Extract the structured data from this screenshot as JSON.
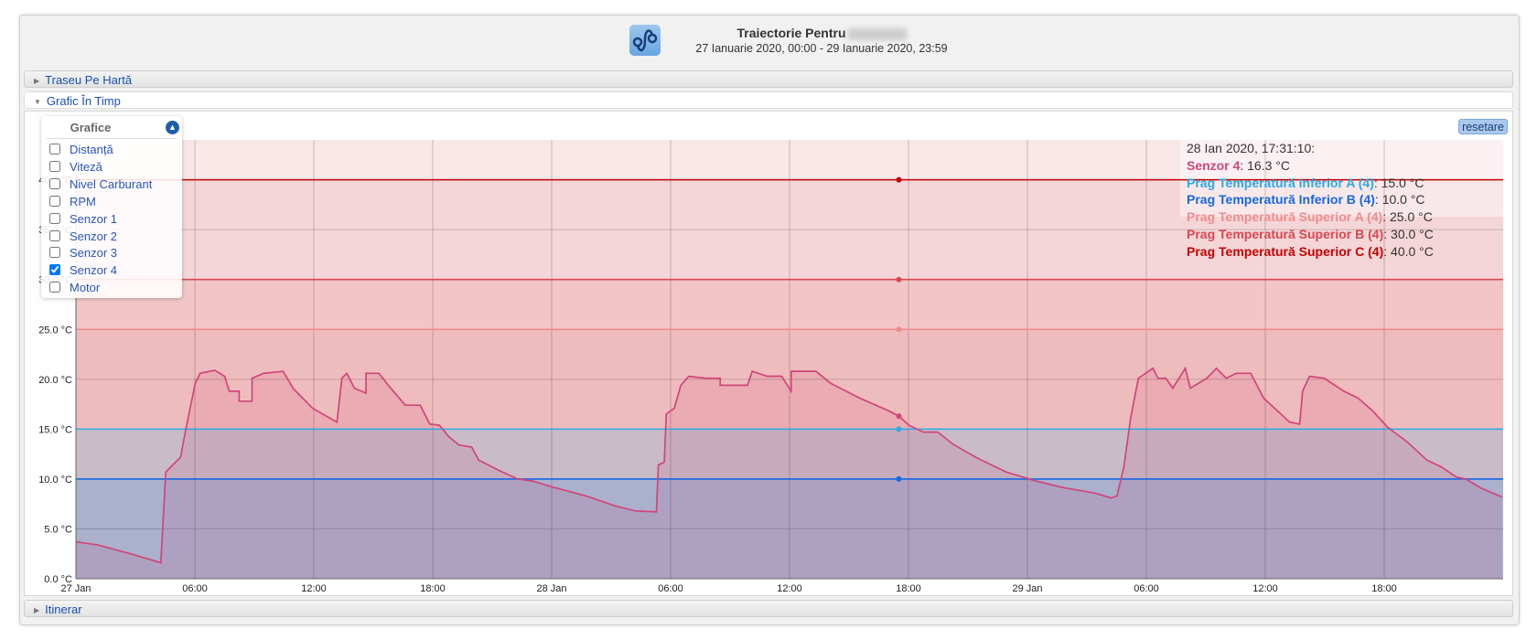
{
  "header": {
    "title": "Traiectorie Pentru",
    "subtitle": "27 Ianuarie 2020, 00:00 - 29 Ianuarie 2020, 23:59",
    "icon": "route-icon"
  },
  "sections": {
    "map": "Traseu Pe Hartă",
    "chart": "Grafic În Timp",
    "itinerary": "Itinerar"
  },
  "legend": {
    "title": "Grafice",
    "items": [
      {
        "label": "Distanță",
        "checked": false
      },
      {
        "label": "Viteză",
        "checked": false
      },
      {
        "label": "Nivel Carburant",
        "checked": false
      },
      {
        "label": "RPM",
        "checked": false
      },
      {
        "label": "Senzor 1",
        "checked": false
      },
      {
        "label": "Senzor 2",
        "checked": false
      },
      {
        "label": "Senzor 3",
        "checked": false
      },
      {
        "label": "Senzor 4",
        "checked": true
      },
      {
        "label": "Motor",
        "checked": false
      }
    ]
  },
  "reset_label": "resetare",
  "tooltip": {
    "time": "28 Ian 2020, 17:31:10:",
    "rows": [
      {
        "name": "Senzor 4",
        "value": "16.3 °C",
        "color": "#d0457a"
      },
      {
        "name": "Prag Temperatură Inferior A (4)",
        "value": "15.0 °C",
        "color": "#2aa9e8"
      },
      {
        "name": "Prag Temperatură Inferior B (4)",
        "value": "10.0 °C",
        "color": "#1668e6"
      },
      {
        "name": "Prag Temperatură Superior A (4)",
        "value": "25.0 °C",
        "color": "#ee8c8c"
      },
      {
        "name": "Prag Temperatură Superior B (4)",
        "value": "30.0 °C",
        "color": "#d9484f"
      },
      {
        "name": "Prag Temperatură Superior C (4)",
        "value": "40.0 °C",
        "color": "#c40000"
      }
    ]
  },
  "chart_data": {
    "type": "line",
    "xlim": [
      "2020-01-27T00:00",
      "2020-01-29T23:59"
    ],
    "ylim": [
      0,
      44
    ],
    "grid": true,
    "x_ticks": [
      "27 Jan",
      "06:00",
      "12:00",
      "18:00",
      "28 Jan",
      "06:00",
      "12:00",
      "18:00",
      "29 Jan",
      "06:00",
      "12:00",
      "18:00"
    ],
    "y_ticks": [
      "0.0 °C",
      "5.0 °C",
      "10.0 °C",
      "15.0 °C",
      "20.0 °C",
      "25.0 °C",
      "30.0 °C",
      "35.0 °C",
      "40.0 °C"
    ],
    "crosshair_time": "2020-01-28T17:31",
    "thresholds": [
      {
        "name": "Prag Temperatură Inferior A (4)",
        "value": 15,
        "color": "#2aa9e8"
      },
      {
        "name": "Prag Temperatură Inferior B (4)",
        "value": 10,
        "color": "#1668e6"
      },
      {
        "name": "Prag Temperatură Superior A (4)",
        "value": 25,
        "color": "#ee8c8c"
      },
      {
        "name": "Prag Temperatură Superior B (4)",
        "value": 30,
        "color": "#d9484f"
      },
      {
        "name": "Prag Temperatură Superior C (4)",
        "value": 40,
        "color": "#c40000"
      }
    ],
    "series": [
      {
        "name": "Senzor 4",
        "color": "#d0457a",
        "points": [
          [
            "2020-01-27T00:00",
            3.7
          ],
          [
            "2020-01-27T01:05",
            3.4
          ],
          [
            "2020-01-27T02:34",
            2.6
          ],
          [
            "2020-01-27T04:17",
            1.6
          ],
          [
            "2020-01-27T04:32",
            10.7
          ],
          [
            "2020-01-27T05:17",
            12.2
          ],
          [
            "2020-01-27T05:31",
            14.7
          ],
          [
            "2020-01-27T06:01",
            19.6
          ],
          [
            "2020-01-27T06:16",
            20.6
          ],
          [
            "2020-01-27T07:00",
            20.9
          ],
          [
            "2020-01-27T07:30",
            20.3
          ],
          [
            "2020-01-27T07:44",
            18.8
          ],
          [
            "2020-01-27T08:14",
            18.8
          ],
          [
            "2020-01-27T08:14",
            17.8
          ],
          [
            "2020-01-27T08:53",
            17.8
          ],
          [
            "2020-01-27T08:53",
            20.1
          ],
          [
            "2020-01-27T09:28",
            20.6
          ],
          [
            "2020-01-27T10:27",
            20.8
          ],
          [
            "2020-01-27T10:57",
            19.1
          ],
          [
            "2020-01-27T11:56",
            17.1
          ],
          [
            "2020-01-27T13:10",
            15.7
          ],
          [
            "2020-01-27T13:25",
            20.1
          ],
          [
            "2020-01-27T13:40",
            20.6
          ],
          [
            "2020-01-27T14:03",
            19.1
          ],
          [
            "2020-01-27T14:38",
            18.6
          ],
          [
            "2020-01-27T14:38",
            20.6
          ],
          [
            "2020-01-27T15:17",
            20.6
          ],
          [
            "2020-01-27T15:53",
            19.1
          ],
          [
            "2020-01-27T16:37",
            17.4
          ],
          [
            "2020-01-27T17:22",
            17.4
          ],
          [
            "2020-01-27T17:51",
            15.5
          ],
          [
            "2020-01-27T18:20",
            15.4
          ],
          [
            "2020-01-27T18:50",
            14.2
          ],
          [
            "2020-01-27T19:20",
            13.4
          ],
          [
            "2020-01-27T19:58",
            13.2
          ],
          [
            "2020-01-27T20:19",
            11.9
          ],
          [
            "2020-01-27T21:18",
            10.9
          ],
          [
            "2020-01-27T22:17",
            10.0
          ],
          [
            "2020-01-27T23:02",
            9.8
          ],
          [
            "2020-01-28T00:01",
            9.2
          ],
          [
            "2020-01-28T01:44",
            8.3
          ],
          [
            "2020-01-28T03:13",
            7.3
          ],
          [
            "2020-01-28T04:13",
            6.8
          ],
          [
            "2020-01-28T05:17",
            6.7
          ],
          [
            "2020-01-28T05:23",
            11.4
          ],
          [
            "2020-01-28T05:41",
            11.7
          ],
          [
            "2020-01-28T05:47",
            16.5
          ],
          [
            "2020-01-28T06:11",
            17.1
          ],
          [
            "2020-01-28T06:31",
            19.4
          ],
          [
            "2020-01-28T06:55",
            20.3
          ],
          [
            "2020-01-28T07:46",
            20.1
          ],
          [
            "2020-01-28T08:30",
            20.1
          ],
          [
            "2020-01-28T08:30",
            19.4
          ],
          [
            "2020-01-28T09:53",
            19.4
          ],
          [
            "2020-01-28T10:07",
            20.8
          ],
          [
            "2020-01-28T10:52",
            20.3
          ],
          [
            "2020-01-28T11:36",
            20.3
          ],
          [
            "2020-01-28T12:05",
            18.8
          ],
          [
            "2020-01-28T12:05",
            20.8
          ],
          [
            "2020-01-28T13:20",
            20.8
          ],
          [
            "2020-01-28T14:04",
            19.6
          ],
          [
            "2020-01-28T15:33",
            18.1
          ],
          [
            "2020-01-28T17:02",
            16.8
          ],
          [
            "2020-01-28T17:31",
            16.3
          ],
          [
            "2020-01-28T18:01",
            15.4
          ],
          [
            "2020-01-28T18:45",
            14.7
          ],
          [
            "2020-01-28T19:29",
            14.7
          ],
          [
            "2020-01-28T20:14",
            13.5
          ],
          [
            "2020-01-28T21:28",
            12.1
          ],
          [
            "2020-01-28T22:56",
            10.7
          ],
          [
            "2020-01-29T00:25",
            9.8
          ],
          [
            "2020-01-29T01:54",
            9.1
          ],
          [
            "2020-01-29T03:23",
            8.6
          ],
          [
            "2020-01-29T04:13",
            8.1
          ],
          [
            "2020-01-29T04:31",
            8.3
          ],
          [
            "2020-01-29T04:52",
            11.2
          ],
          [
            "2020-01-29T05:13",
            16.2
          ],
          [
            "2020-01-29T05:36",
            20.1
          ],
          [
            "2020-01-29T06:20",
            21.1
          ],
          [
            "2020-01-29T06:35",
            20.1
          ],
          [
            "2020-01-29T06:59",
            20.1
          ],
          [
            "2020-01-29T07:20",
            19.1
          ],
          [
            "2020-01-29T07:58",
            21.1
          ],
          [
            "2020-01-29T08:13",
            19.1
          ],
          [
            "2020-01-29T09:03",
            20.1
          ],
          [
            "2020-01-29T09:32",
            21.1
          ],
          [
            "2020-01-29T10:02",
            20.1
          ],
          [
            "2020-01-29T10:32",
            20.6
          ],
          [
            "2020-01-29T11:16",
            20.6
          ],
          [
            "2020-01-29T11:55",
            18.1
          ],
          [
            "2020-01-29T13:14",
            15.7
          ],
          [
            "2020-01-29T13:44",
            15.5
          ],
          [
            "2020-01-29T13:53",
            18.8
          ],
          [
            "2020-01-29T14:14",
            20.3
          ],
          [
            "2020-01-29T14:58",
            20.1
          ],
          [
            "2020-01-29T15:58",
            18.8
          ],
          [
            "2020-01-29T16:41",
            18.1
          ],
          [
            "2020-01-29T17:26",
            16.8
          ],
          [
            "2020-01-29T18:10",
            15.2
          ],
          [
            "2020-01-29T19:10",
            13.7
          ],
          [
            "2020-01-29T20:09",
            11.9
          ],
          [
            "2020-01-29T20:53",
            11.2
          ],
          [
            "2020-01-29T21:38",
            10.2
          ],
          [
            "2020-01-29T22:07",
            10.0
          ],
          [
            "2020-01-29T22:52",
            9.1
          ],
          [
            "2020-01-29T23:56",
            8.2
          ]
        ]
      }
    ]
  }
}
